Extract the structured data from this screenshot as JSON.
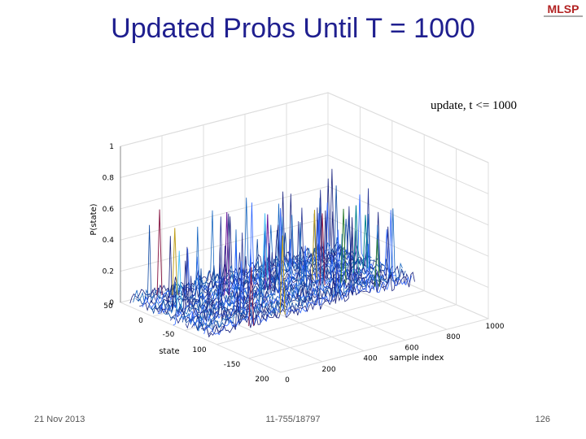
{
  "slide": {
    "title": "Updated Probs Until T = 1000",
    "logo": "MLSP",
    "figure": {
      "title": "update, t <= 1000",
      "z_label": "P(state)",
      "z_ticks": [
        "0",
        "0.2",
        "0.4",
        "0.6",
        "0.8",
        "1"
      ],
      "state_label": "state",
      "state_ticks": [
        "50",
        "0",
        "-50",
        "100",
        "-150",
        "200"
      ],
      "sample_label": "sample index",
      "sample_ticks": [
        "0",
        "200",
        "400",
        "600",
        "800",
        "1000"
      ]
    },
    "footer": {
      "date": "21 Nov 2013",
      "course": "11-755/18797",
      "page": "126"
    }
  }
}
